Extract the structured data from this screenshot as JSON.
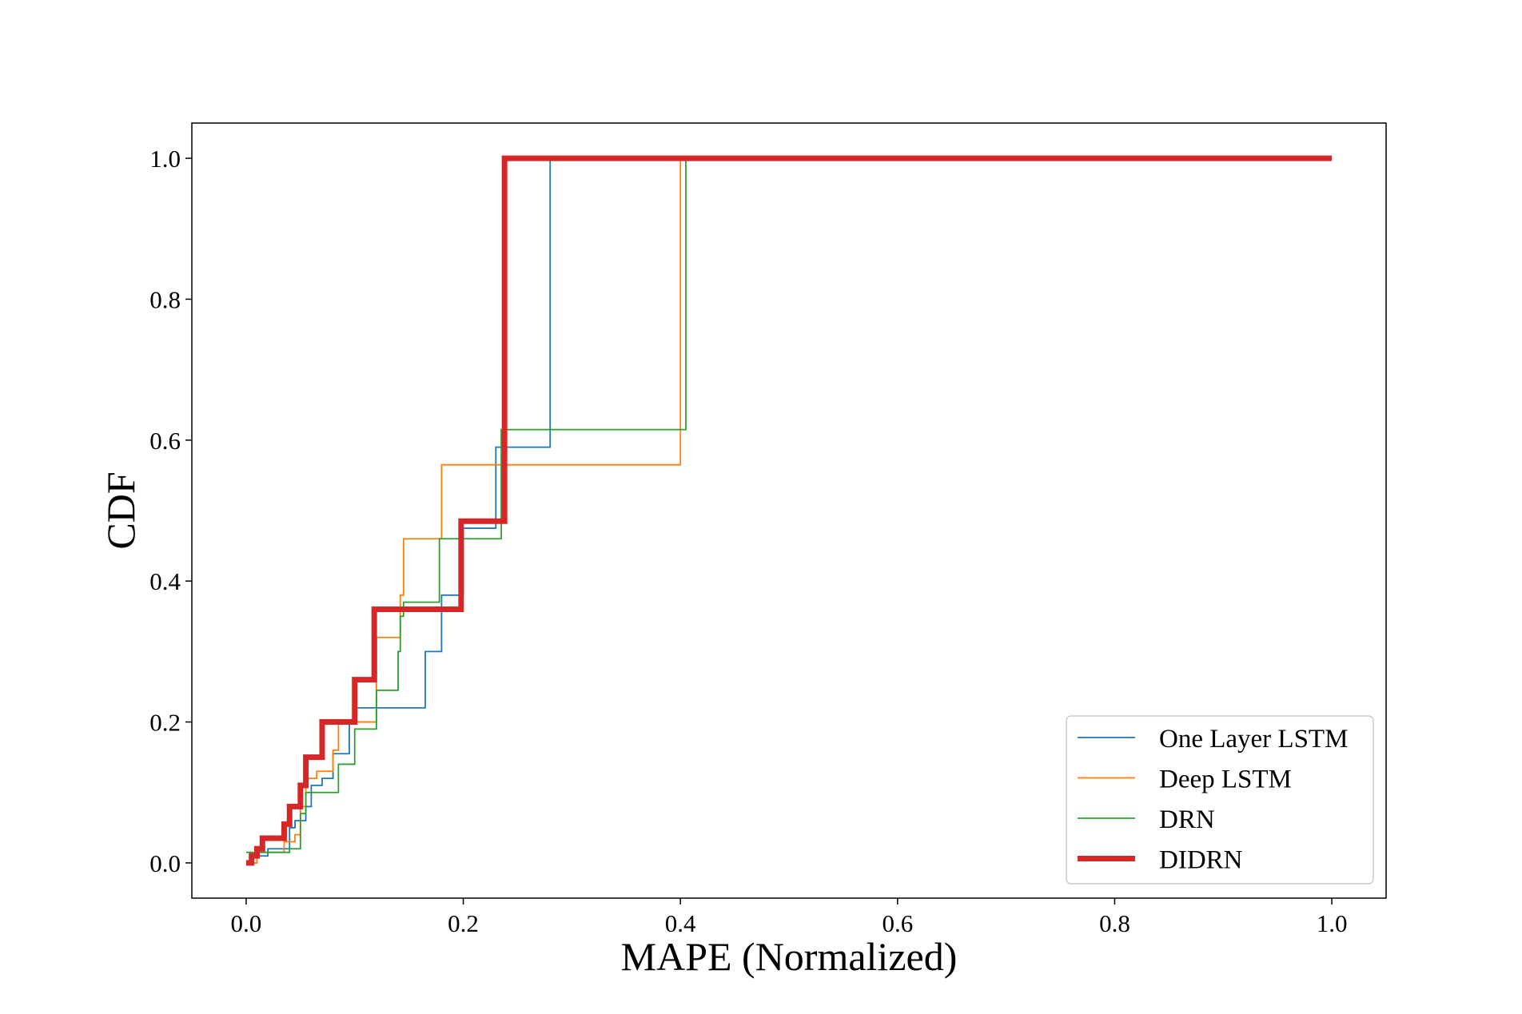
{
  "chart_data": {
    "type": "line",
    "step": "post",
    "xlabel": "MAPE (Normalized)",
    "ylabel": "CDF",
    "xlim": [
      -0.05,
      1.05
    ],
    "ylim": [
      -0.05,
      1.05
    ],
    "xticks": [
      "0.0",
      "0.2",
      "0.4",
      "0.6",
      "0.8",
      "1.0"
    ],
    "yticks": [
      "0.0",
      "0.2",
      "0.4",
      "0.6",
      "0.8",
      "1.0"
    ],
    "grid": false,
    "legend_position": "lower-right",
    "series": [
      {
        "name": "One Layer LSTM",
        "color": "#1f77b4",
        "x": [
          0.0,
          0.01,
          0.02,
          0.04,
          0.045,
          0.055,
          0.06,
          0.07,
          0.08,
          0.095,
          0.1,
          0.165,
          0.18,
          0.2,
          0.23,
          0.28,
          1.0
        ],
        "y": [
          0.0,
          0.01,
          0.02,
          0.05,
          0.06,
          0.08,
          0.11,
          0.12,
          0.155,
          0.2,
          0.22,
          0.3,
          0.38,
          0.475,
          0.59,
          1.0,
          1.0
        ]
      },
      {
        "name": "Deep LSTM",
        "color": "#ff7f0e",
        "x": [
          0.0,
          0.01,
          0.035,
          0.045,
          0.05,
          0.055,
          0.065,
          0.08,
          0.085,
          0.09,
          0.12,
          0.14,
          0.142,
          0.145,
          0.18,
          0.235,
          0.4,
          1.0
        ],
        "y": [
          0.0,
          0.015,
          0.03,
          0.04,
          0.08,
          0.12,
          0.13,
          0.16,
          0.2,
          0.2,
          0.32,
          0.32,
          0.38,
          0.46,
          0.565,
          0.565,
          1.0,
          1.0
        ]
      },
      {
        "name": "DRN",
        "color": "#2ca02c",
        "x": [
          0.0,
          0.04,
          0.05,
          0.055,
          0.07,
          0.085,
          0.1,
          0.12,
          0.14,
          0.142,
          0.145,
          0.178,
          0.235,
          0.405,
          1.0
        ],
        "y": [
          0.015,
          0.02,
          0.07,
          0.1,
          0.1,
          0.14,
          0.19,
          0.245,
          0.3,
          0.35,
          0.37,
          0.46,
          0.615,
          1.0,
          1.0
        ]
      },
      {
        "name": "DIDRN",
        "color": "#d62728",
        "x": [
          0.0,
          0.005,
          0.01,
          0.015,
          0.035,
          0.04,
          0.05,
          0.055,
          0.06,
          0.07,
          0.1,
          0.115,
          0.118,
          0.15,
          0.198,
          0.238,
          1.0
        ],
        "y": [
          0.0,
          0.01,
          0.02,
          0.035,
          0.055,
          0.08,
          0.11,
          0.15,
          0.15,
          0.2,
          0.26,
          0.26,
          0.36,
          0.36,
          0.485,
          1.0,
          1.0
        ]
      }
    ]
  }
}
